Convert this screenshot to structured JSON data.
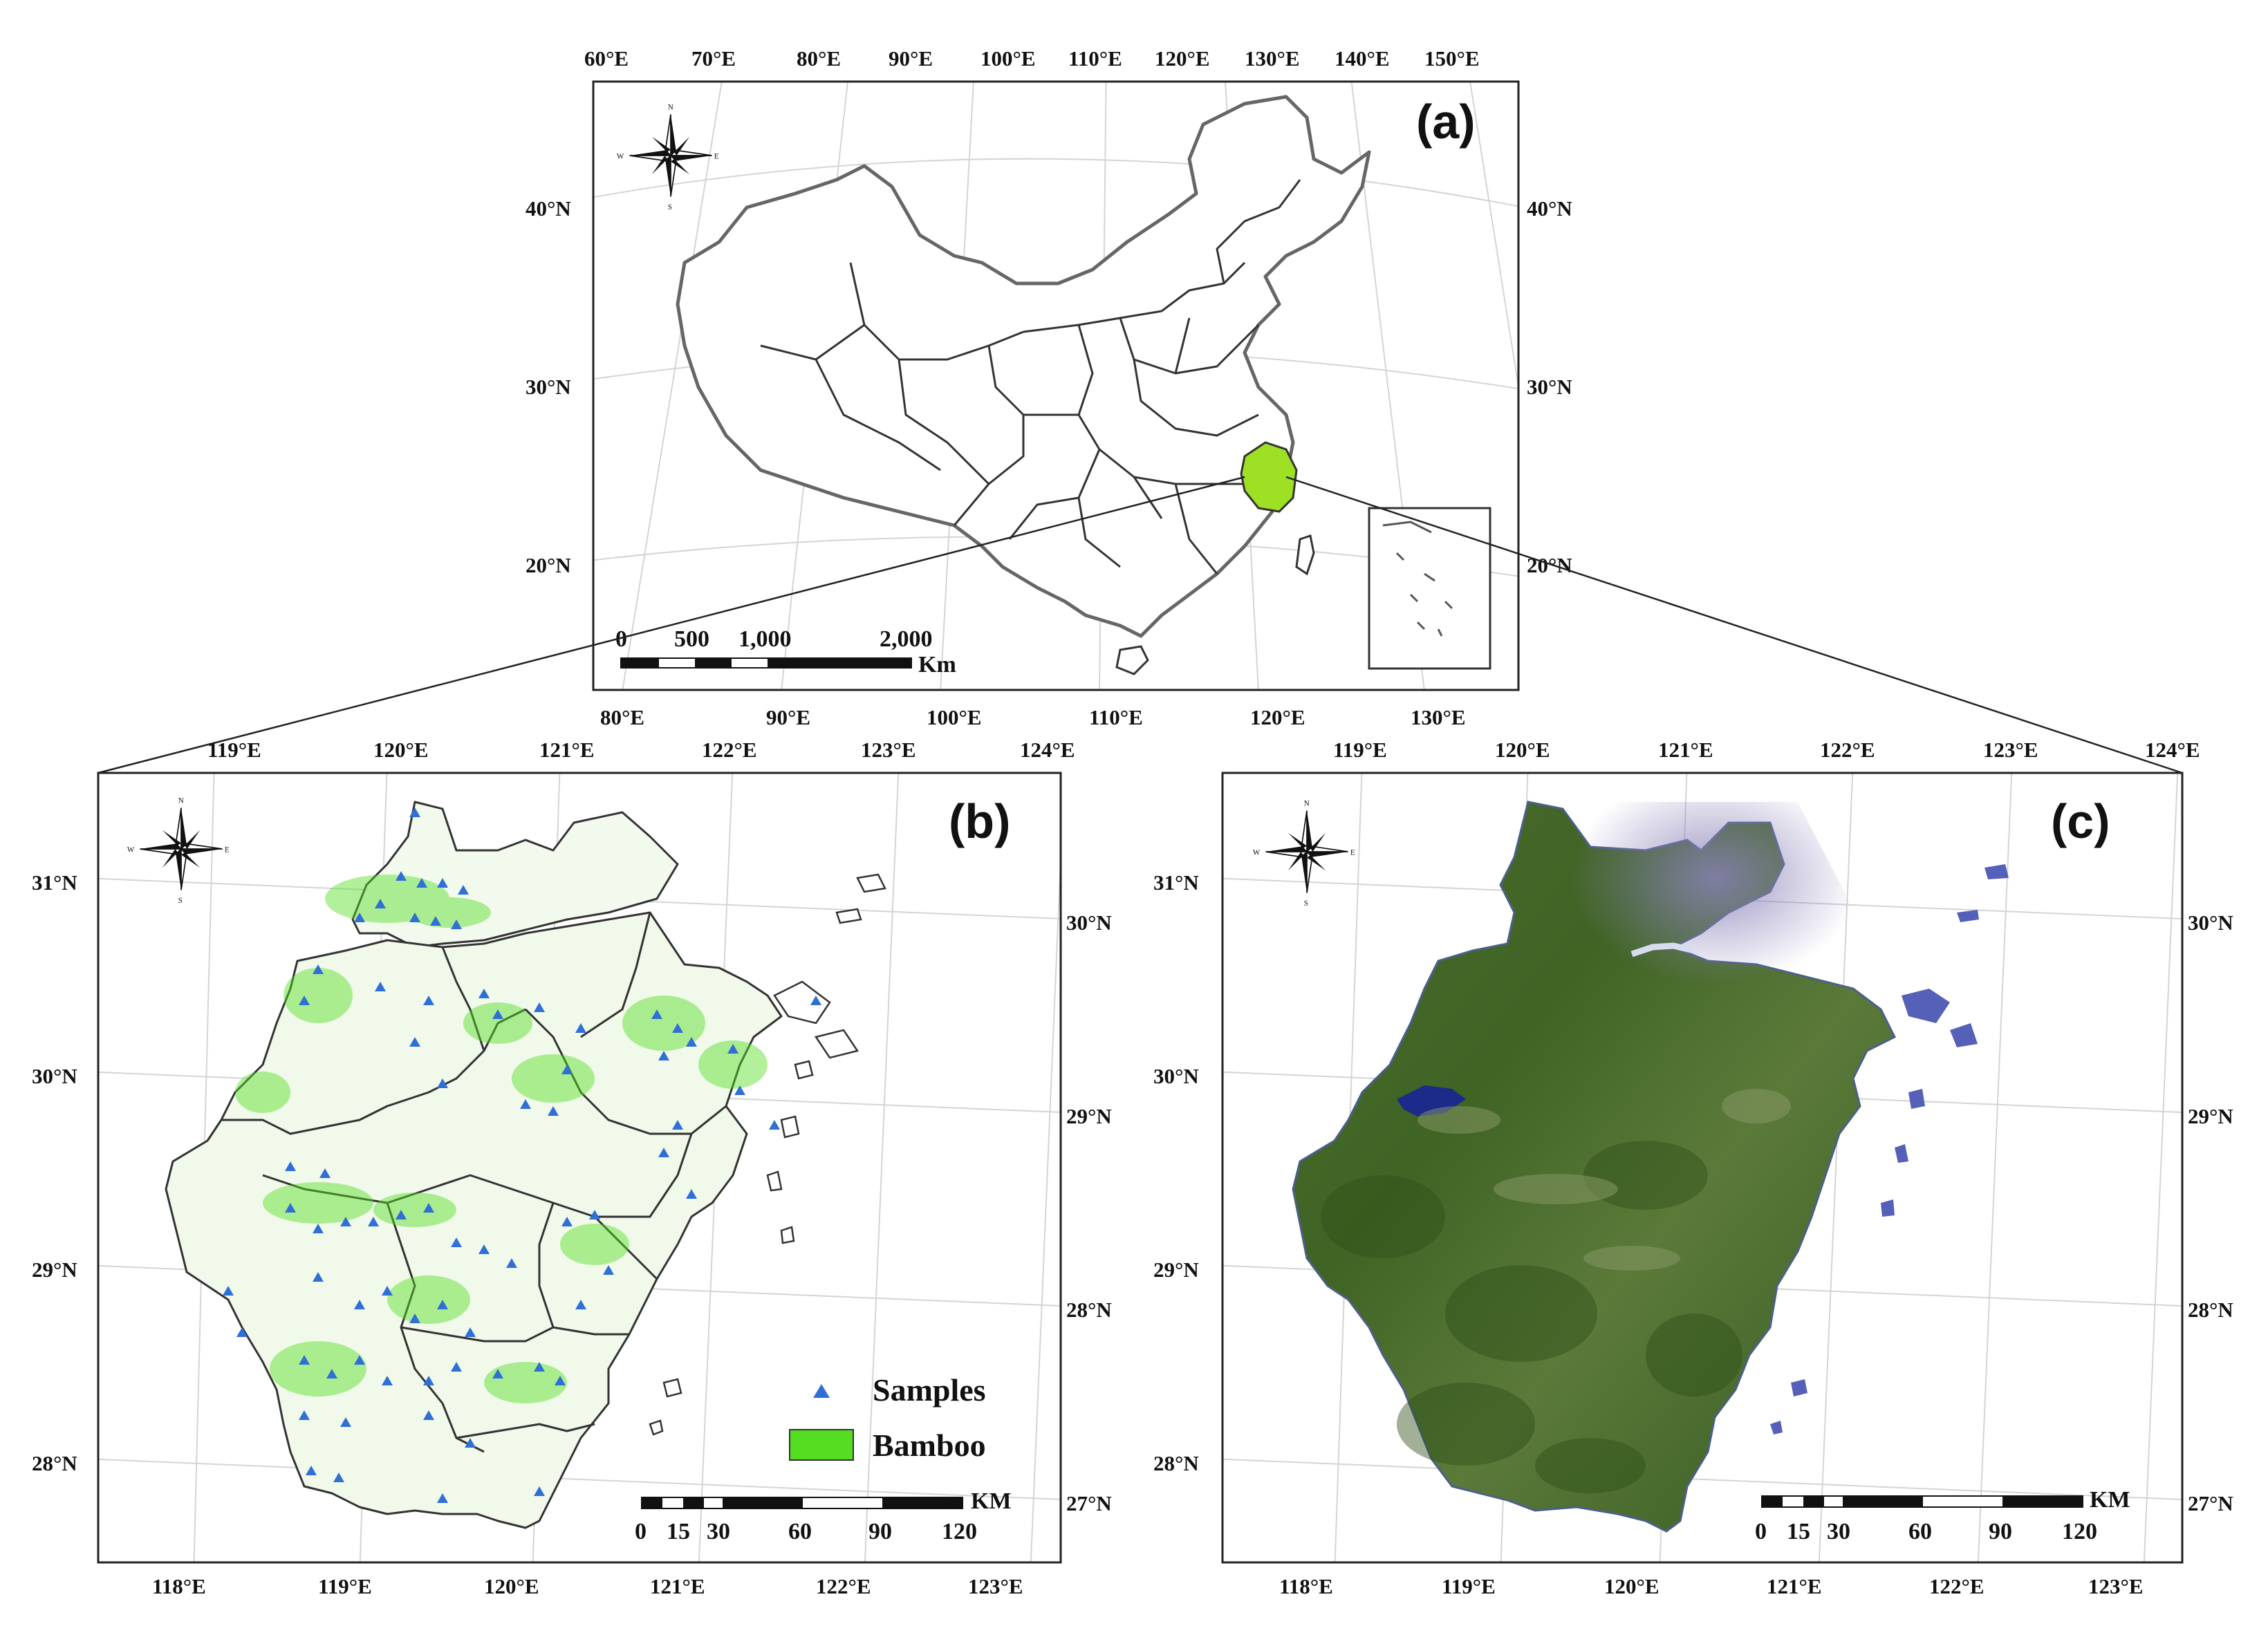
{
  "panels": {
    "a": {
      "label": "(a)",
      "top_ticks": [
        "60°E",
        "70°E",
        "80°E",
        "90°E",
        "100°E",
        "110°E",
        "120°E",
        "130°E",
        "140°E",
        "150°E"
      ],
      "bottom_ticks": [
        "80°E",
        "90°E",
        "100°E",
        "110°E",
        "120°E",
        "130°E"
      ],
      "left_ticks": [
        "40°N",
        "30°N",
        "20°N"
      ],
      "right_ticks": [
        "40°N",
        "30°N",
        "20°N"
      ],
      "scale": {
        "numbers": [
          "0",
          "500",
          "1,000",
          "2,000"
        ],
        "unit": "Km"
      },
      "compass": {
        "n": "N",
        "s": "S",
        "e": "E",
        "w": "W"
      },
      "highlight_color": "#9de024"
    },
    "b": {
      "label": "(b)",
      "top_ticks": [
        "119°E",
        "120°E",
        "121°E",
        "122°E",
        "123°E",
        "124°E"
      ],
      "bottom_ticks": [
        "118°E",
        "119°E",
        "120°E",
        "121°E",
        "122°E",
        "123°E"
      ],
      "left_ticks": [
        "31°N",
        "30°N",
        "29°N",
        "28°N"
      ],
      "right_ticks": [
        "30°N",
        "29°N",
        "28°N",
        "27°N"
      ],
      "scale": {
        "numbers": [
          "0",
          "15",
          "30",
          "60",
          "90",
          "120"
        ],
        "unit": "KM"
      },
      "compass": {
        "n": "N",
        "s": "S",
        "e": "E",
        "w": "W"
      },
      "legend": [
        {
          "label": "Samples",
          "color": "#2f6fd6",
          "symbol": "triangle"
        },
        {
          "label": "Bamboo",
          "color": "#55dd22",
          "symbol": "box"
        }
      ]
    },
    "c": {
      "label": "(c)",
      "top_ticks": [
        "119°E",
        "120°E",
        "121°E",
        "122°E",
        "123°E",
        "124°E"
      ],
      "bottom_ticks": [
        "118°E",
        "119°E",
        "120°E",
        "121°E",
        "122°E",
        "123°E"
      ],
      "left_ticks": [
        "31°N",
        "30°N",
        "29°N",
        "28°N"
      ],
      "right_ticks": [
        "30°N",
        "29°N",
        "28°N",
        "27°N"
      ],
      "scale": {
        "numbers": [
          "0",
          "15",
          "30",
          "60",
          "90",
          "120"
        ],
        "unit": "KM"
      },
      "compass": {
        "n": "N",
        "s": "S",
        "e": "E",
        "w": "W"
      }
    }
  }
}
